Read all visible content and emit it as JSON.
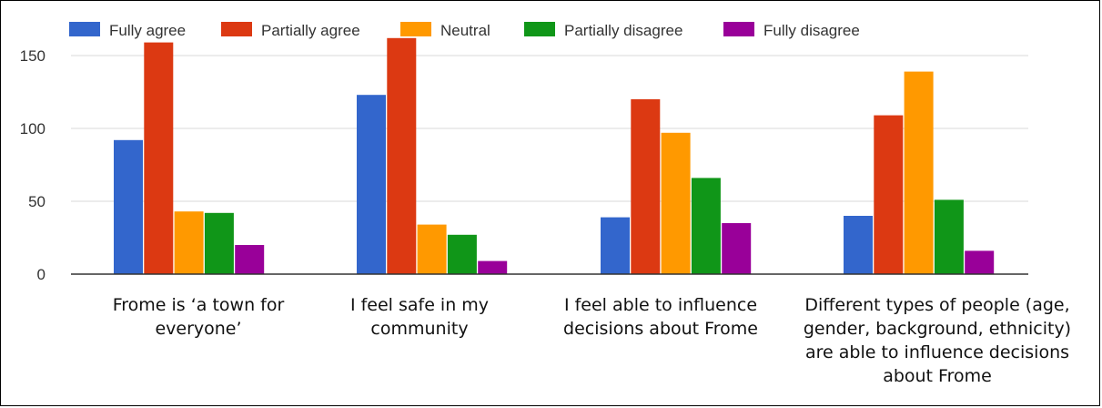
{
  "chart_data": {
    "type": "bar",
    "categories": [
      [
        "Frome is ‘a town for",
        "everyone’"
      ],
      [
        "I feel safe in my",
        "community"
      ],
      [
        "I feel able to influence",
        "decisions about Frome"
      ],
      [
        "Different types of people (age,",
        "gender, background, ethnicity)",
        "are able to influence decisions",
        "about Frome"
      ]
    ],
    "series": [
      {
        "name": "Fully agree",
        "color": "#3366cc",
        "values": [
          92,
          123,
          39,
          40
        ]
      },
      {
        "name": "Partially agree",
        "color": "#dc3912",
        "values": [
          159,
          162,
          120,
          109
        ]
      },
      {
        "name": "Neutral",
        "color": "#ff9900",
        "values": [
          43,
          34,
          97,
          139
        ]
      },
      {
        "name": "Partially disagree",
        "color": "#109618",
        "values": [
          42,
          27,
          66,
          51
        ]
      },
      {
        "name": "Fully disagree",
        "color": "#990099",
        "values": [
          20,
          9,
          35,
          16
        ]
      }
    ],
    "ylim": [
      0,
      170
    ],
    "yticks": [
      "0",
      "50",
      "100",
      "150"
    ],
    "grid": true,
    "legend_position": "top"
  }
}
